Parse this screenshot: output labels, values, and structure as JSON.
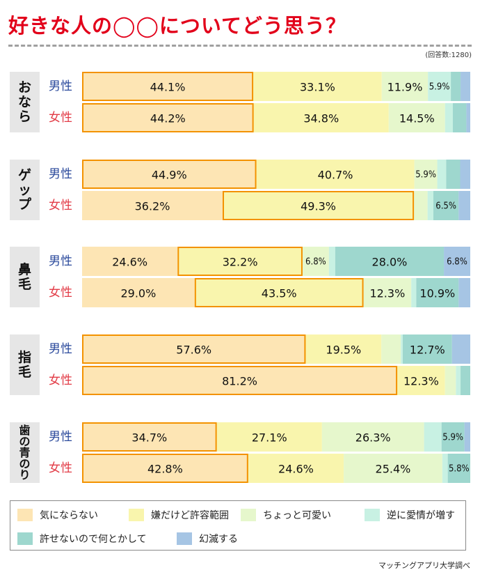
{
  "title": "好きな人の◯◯についてどう思う？",
  "respondents": "(回答数:1280)",
  "source": "マッチングアプリ大学調べ",
  "colors": [
    "#fde5b4",
    "#f9f5ad",
    "#e6f7cc",
    "#c8f1e3",
    "#9ed7ce",
    "#a6c5e4"
  ],
  "highlight_color": "#f39200",
  "male_color": "#2b4a9c",
  "female_color": "#e23b46",
  "chart_data": {
    "type": "bar",
    "orientation": "horizontal",
    "stacked": true,
    "xlim": [
      0,
      100
    ],
    "unit": "%",
    "series": [
      "気にならない",
      "嫌だけど許容範囲",
      "ちょっと可愛い",
      "逆に愛情が増す",
      "許せないので何とかして",
      "幻滅する"
    ],
    "groups": [
      {
        "label": "おなら",
        "rows": [
          {
            "gender": "男性",
            "values": [
              44.1,
              33.1,
              11.9,
              5.9,
              2.5,
              2.5
            ],
            "labels": [
              "44.1%",
              "33.1%",
              "11.9%",
              "5.9%",
              "",
              ""
            ],
            "highlight": 0
          },
          {
            "gender": "女性",
            "values": [
              44.2,
              34.8,
              14.5,
              2.0,
              3.5,
              1.0
            ],
            "labels": [
              "44.2%",
              "34.8%",
              "14.5%",
              "",
              "",
              ""
            ],
            "highlight": 0
          }
        ]
      },
      {
        "label": "ゲップ",
        "rows": [
          {
            "gender": "男性",
            "values": [
              44.9,
              40.7,
              5.9,
              2.3,
              3.6,
              2.6
            ],
            "labels": [
              "44.9%",
              "40.7%",
              "5.9%",
              "",
              "",
              ""
            ],
            "highlight": 0
          },
          {
            "gender": "女性",
            "values": [
              36.2,
              49.3,
              3.5,
              1.5,
              6.5,
              3.0
            ],
            "labels": [
              "36.2%",
              "49.3%",
              "",
              "",
              "6.5%",
              ""
            ],
            "highlight": 1
          }
        ]
      },
      {
        "label": "鼻毛",
        "rows": [
          {
            "gender": "男性",
            "values": [
              24.6,
              32.2,
              6.8,
              1.6,
              28.0,
              6.8
            ],
            "labels": [
              "24.6%",
              "32.2%",
              "6.8%",
              "",
              "28.0%",
              "6.8%"
            ],
            "highlight": 1
          },
          {
            "gender": "女性",
            "values": [
              29.0,
              43.5,
              12.3,
              1.3,
              10.9,
              3.0
            ],
            "labels": [
              "29.0%",
              "43.5%",
              "12.3%",
              "",
              "10.9%",
              ""
            ],
            "highlight": 1
          }
        ]
      },
      {
        "label": "指毛",
        "rows": [
          {
            "gender": "男性",
            "values": [
              57.6,
              19.5,
              5.0,
              0.5,
              12.7,
              4.7
            ],
            "labels": [
              "57.6%",
              "19.5%",
              "",
              "",
              "12.7%",
              ""
            ],
            "highlight": 0
          },
          {
            "gender": "女性",
            "values": [
              81.2,
              12.3,
              2.8,
              1.2,
              2.5,
              0.0
            ],
            "labels": [
              "81.2%",
              "12.3%",
              "",
              "",
              "",
              ""
            ],
            "highlight": 0
          }
        ]
      },
      {
        "label": "歯の青のり",
        "rows": [
          {
            "gender": "男性",
            "values": [
              34.7,
              27.1,
              26.3,
              4.5,
              5.9,
              1.5
            ],
            "labels": [
              "34.7%",
              "27.1%",
              "26.3%",
              "",
              "5.9%",
              ""
            ],
            "highlight": 0
          },
          {
            "gender": "女性",
            "values": [
              42.8,
              24.6,
              25.4,
              1.4,
              5.8,
              0.0
            ],
            "labels": [
              "42.8%",
              "24.6%",
              "25.4%",
              "",
              "5.8%",
              ""
            ],
            "highlight": 0
          }
        ]
      }
    ]
  }
}
